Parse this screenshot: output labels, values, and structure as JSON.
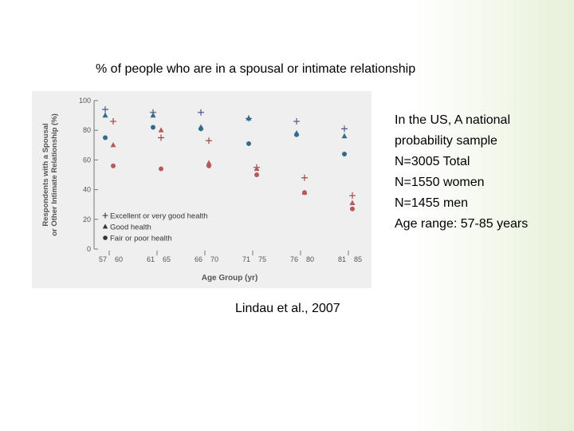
{
  "slide": {
    "title": "% of people who are in a spousal or intimate relationship",
    "info_lines": [
      "In the US, A national",
      "probability sample",
      "N=3005 Total",
      "N=1550 women",
      "N=1455 men",
      "Age range: 57-85 years"
    ],
    "citation": "Lindau et al., 2007"
  },
  "colors": {
    "excellent": "#4a5a8a",
    "good": "#2e6d8e",
    "fair": "#b45a5a"
  },
  "chart_data": {
    "type": "scatter",
    "ylabel_lines": [
      "Respondents with a Spousal",
      "or Other Intimate Relationship (%)"
    ],
    "xlabel": "Age Group (yr)",
    "ylim": [
      0,
      100
    ],
    "yticks": [
      0,
      20,
      40,
      60,
      80,
      100
    ],
    "groups": [
      {
        "labels": [
          "57",
          "60"
        ]
      },
      {
        "labels": [
          "61",
          "65"
        ]
      },
      {
        "labels": [
          "66",
          "70"
        ]
      },
      {
        "labels": [
          "71",
          "75"
        ]
      },
      {
        "labels": [
          "76",
          "80"
        ]
      },
      {
        "labels": [
          "81",
          "85"
        ]
      }
    ],
    "series": [
      {
        "name": "Excellent or very good health",
        "marker": "plus",
        "sex": "men",
        "values": [
          94,
          92,
          92,
          88,
          86,
          81
        ]
      },
      {
        "name": "Good health",
        "marker": "triangle",
        "sex": "men",
        "values": [
          90,
          90,
          82,
          88,
          78,
          76
        ]
      },
      {
        "name": "Fair or poor health",
        "marker": "circle",
        "sex": "men",
        "values": [
          75,
          82,
          81,
          71,
          77,
          64
        ]
      },
      {
        "name": "Excellent or very good health",
        "marker": "plus",
        "sex": "women",
        "values": [
          86,
          75,
          73,
          55,
          48,
          36
        ]
      },
      {
        "name": "Good health",
        "marker": "triangle",
        "sex": "women",
        "values": [
          70,
          80,
          58,
          54,
          38,
          31
        ]
      },
      {
        "name": "Fair or poor health",
        "marker": "circle",
        "sex": "women",
        "values": [
          56,
          54,
          56,
          50,
          38,
          27
        ]
      }
    ],
    "legend": [
      {
        "label": "Excellent or very good health",
        "marker": "plus"
      },
      {
        "label": "Good health",
        "marker": "triangle"
      },
      {
        "label": "Fair or poor health",
        "marker": "circle"
      }
    ],
    "legend_position": "bottom-left"
  }
}
